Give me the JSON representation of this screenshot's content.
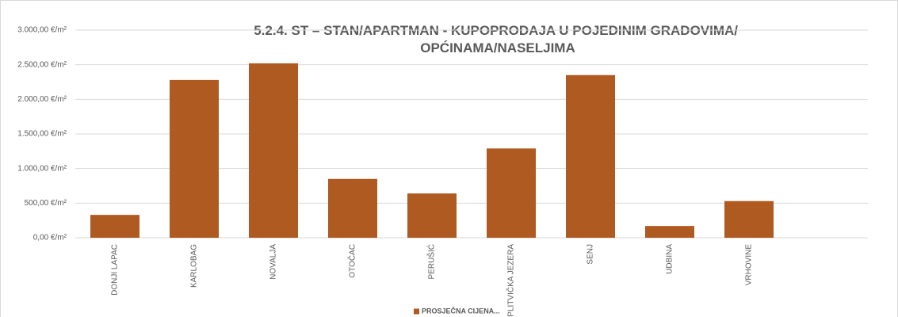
{
  "chart_data": {
    "type": "bar",
    "title": [
      "5.2.4. ST – STAN/APARTMAN - KUPOPRODAJA U POJEDINIM GRADOVIMA/",
      "OPĆINAMA/NASELJIMA"
    ],
    "categories": [
      "DONJI LAPAC",
      "KARLOBAG",
      "NOVALJA",
      "OTOČAC",
      "PERUŠIĆ",
      "PLITVIČKA JEZERA",
      "SENJ",
      "UDBINA",
      "VRHOVINE",
      null
    ],
    "series": [
      {
        "name": "PROSJEČNA CIJENA...",
        "color": "#ae5a21",
        "values": [
          330,
          2280,
          2520,
          850,
          640,
          1290,
          2350,
          170,
          530,
          null
        ]
      }
    ],
    "ylim": [
      0,
      3000
    ],
    "yticks": [
      {
        "value": 0,
        "label": "0,00 €/m²"
      },
      {
        "value": 500,
        "label": "500,00 €/m²"
      },
      {
        "value": 1000,
        "label": "1.000,00 €/m²"
      },
      {
        "value": 1500,
        "label": "1.500,00 €/m²"
      },
      {
        "value": 2000,
        "label": "2.000,00 €/m²"
      },
      {
        "value": 2500,
        "label": "2.500,00 €/m²"
      },
      {
        "value": 3000,
        "label": "3.000,00 €/m²"
      }
    ],
    "grid": true,
    "legend": "bottom"
  }
}
